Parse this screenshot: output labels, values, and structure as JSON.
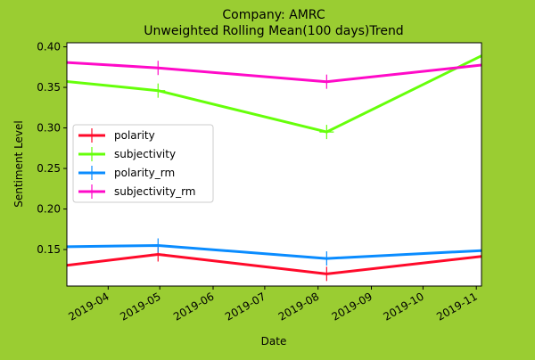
{
  "chart_data": {
    "type": "line",
    "title_line1": "Company: AMRC",
    "title_line2": "Unweighted Rolling Mean(100 days)Trend",
    "xlabel": "Date",
    "ylabel": "Sentiment Level",
    "x_range": [
      "2019-03-08",
      "2019-11-04"
    ],
    "ylim": [
      0.105,
      0.405
    ],
    "grid": false,
    "legend_position": "center-left",
    "x_ticks": [
      "2019-04",
      "2019-05",
      "2019-06",
      "2019-07",
      "2019-08",
      "2019-09",
      "2019-10",
      "2019-11"
    ],
    "y_ticks": [
      "0.15",
      "0.20",
      "0.25",
      "0.30",
      "0.35",
      "0.40"
    ],
    "series": [
      {
        "name": "polarity",
        "color": "#ff0a2a",
        "x": [
          "2019-02-18",
          "2019-04-30",
          "2019-08-06",
          "2019-11-06"
        ],
        "y": [
          0.126,
          0.144,
          0.12,
          0.142
        ],
        "marker_x": [
          "2019-04-30",
          "2019-08-06"
        ]
      },
      {
        "name": "subjectivity",
        "color": "#66ff0a",
        "x": [
          "2019-02-18",
          "2019-04-30",
          "2019-08-06",
          "2019-11-06"
        ],
        "y": [
          0.361,
          0.346,
          0.295,
          0.391
        ],
        "marker_x": [
          "2019-04-30",
          "2019-08-06"
        ]
      },
      {
        "name": "polarity_rm",
        "color": "#0a8cff",
        "x": [
          "2019-02-18",
          "2019-04-30",
          "2019-08-06",
          "2019-11-06"
        ],
        "y": [
          0.153,
          0.155,
          0.139,
          0.149
        ],
        "marker_x": [
          "2019-04-30",
          "2019-08-06"
        ]
      },
      {
        "name": "subjectivity_rm",
        "color": "#ff0ac8",
        "x": [
          "2019-02-18",
          "2019-04-30",
          "2019-08-06",
          "2019-11-06"
        ],
        "y": [
          0.383,
          0.374,
          0.357,
          0.378
        ],
        "marker_x": [
          "2019-04-30",
          "2019-08-06"
        ]
      }
    ]
  }
}
